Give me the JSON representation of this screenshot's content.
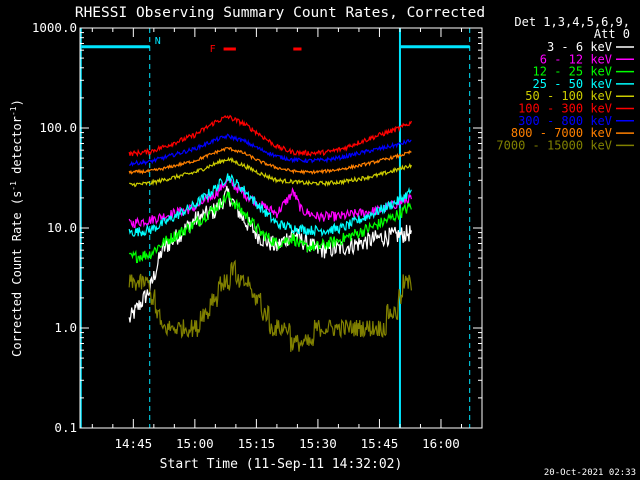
{
  "chart_data": {
    "type": "line",
    "title": "RHESSI Observing Summary Count Rates, Corrected",
    "xlabel": "Start Time (11-Sep-11 14:32:02)",
    "ylabel": "Corrected Count Rate (s^-1 detector^-1)",
    "ylabel_parts": [
      "Corrected Count Rate (s",
      "-1",
      " detector",
      "-1",
      ")"
    ],
    "yscale": "log",
    "ylim": [
      0.1,
      1000.0
    ],
    "xlim": [
      "14:32",
      "16:10"
    ],
    "x_ticks": [
      "14:45",
      "15:00",
      "15:15",
      "15:30",
      "15:45",
      "16:00"
    ],
    "y_ticks": [
      "0.1",
      "1.0",
      "10.0",
      "100.0",
      "1000.0"
    ],
    "legend_header": [
      "Det 1,3,4,5,6,9,",
      "Att 0"
    ],
    "legend_position": "top-right-outside",
    "timestamp": "20-Oct-2021 02:33",
    "annotations": {
      "night_marker": "N",
      "flare_marker": "F",
      "night_intervals": [
        [
          "14:32",
          "14:49"
        ],
        [
          "15:50",
          "16:07"
        ]
      ],
      "flare_bars": [
        [
          "15:07",
          "15:10"
        ],
        [
          "15:24",
          "15:26"
        ]
      ],
      "night_level": 650
    },
    "data_start": "14:44",
    "data_end": "15:53",
    "series": [
      {
        "name": "3 - 6 keV",
        "color": "#ffffff",
        "x": [
          "14:44",
          "14:49",
          "14:52",
          "15:00",
          "15:05",
          "15:08",
          "15:12",
          "15:16",
          "15:20",
          "15:24",
          "15:26",
          "15:30",
          "15:35",
          "15:40",
          "15:45",
          "15:50",
          "15:53"
        ],
        "values": [
          1.2,
          2.4,
          6.0,
          12.0,
          15.0,
          22.0,
          12.0,
          8.0,
          6.5,
          9.0,
          7.5,
          6.0,
          6.2,
          7.0,
          8.0,
          8.5,
          9.0
        ]
      },
      {
        "name": "6 - 12 keV",
        "color": "#ff00ff",
        "x": [
          "14:44",
          "14:49",
          "14:52",
          "15:00",
          "15:05",
          "15:08",
          "15:12",
          "15:16",
          "15:20",
          "15:24",
          "15:26",
          "15:30",
          "15:35",
          "15:40",
          "15:45",
          "15:50",
          "15:53"
        ],
        "values": [
          11,
          12,
          13,
          16,
          22,
          30,
          22,
          17,
          14,
          23,
          15,
          13,
          13,
          14,
          15,
          18,
          20
        ]
      },
      {
        "name": "12 - 25 keV",
        "color": "#00ff00",
        "x": [
          "14:44",
          "14:49",
          "14:52",
          "15:00",
          "15:05",
          "15:08",
          "15:12",
          "15:16",
          "15:20",
          "15:24",
          "15:26",
          "15:30",
          "15:35",
          "15:40",
          "15:45",
          "15:50",
          "15:53"
        ],
        "values": [
          5,
          5.5,
          7,
          11,
          16,
          21,
          14,
          9,
          7,
          8,
          6.5,
          6.5,
          7.5,
          9,
          11,
          14,
          17
        ]
      },
      {
        "name": "25 - 50 keV",
        "color": "#00ffff",
        "x": [
          "14:44",
          "14:49",
          "14:52",
          "15:00",
          "15:05",
          "15:08",
          "15:12",
          "15:16",
          "15:20",
          "15:24",
          "15:28",
          "15:32",
          "15:36",
          "15:40",
          "15:45",
          "15:50",
          "15:53"
        ],
        "values": [
          9,
          9.5,
          11,
          17,
          25,
          33,
          24,
          16,
          11,
          10,
          9.5,
          9.5,
          10,
          12,
          15,
          19,
          24
        ]
      },
      {
        "name": "50 - 100 keV",
        "color": "#cccc00",
        "x": [
          "14:44",
          "14:49",
          "14:52",
          "15:00",
          "15:05",
          "15:08",
          "15:12",
          "15:16",
          "15:20",
          "15:24",
          "15:28",
          "15:32",
          "15:36",
          "15:40",
          "15:45",
          "15:50",
          "15:53"
        ],
        "values": [
          27,
          28,
          30,
          36,
          44,
          49,
          42,
          35,
          30,
          29,
          28,
          28,
          29,
          31,
          34,
          39,
          43
        ]
      },
      {
        "name": "100 - 300 keV",
        "color": "#ff0000",
        "x": [
          "14:44",
          "14:49",
          "14:52",
          "15:00",
          "15:05",
          "15:08",
          "15:12",
          "15:16",
          "15:20",
          "15:24",
          "15:28",
          "15:32",
          "15:36",
          "15:40",
          "15:45",
          "15:50",
          "15:53"
        ],
        "values": [
          55,
          58,
          64,
          85,
          115,
          130,
          110,
          85,
          65,
          57,
          56,
          57,
          62,
          72,
          85,
          100,
          115
        ]
      },
      {
        "name": "300 - 800 keV",
        "color": "#0000ff",
        "x": [
          "14:44",
          "14:49",
          "14:52",
          "15:00",
          "15:05",
          "15:08",
          "15:12",
          "15:16",
          "15:20",
          "15:24",
          "15:28",
          "15:32",
          "15:36",
          "15:40",
          "15:45",
          "15:50",
          "15:53"
        ],
        "values": [
          44,
          46,
          50,
          62,
          76,
          83,
          74,
          61,
          52,
          48,
          47,
          48,
          51,
          56,
          62,
          69,
          76
        ]
      },
      {
        "name": "800 - 7000 keV",
        "color": "#ff8000",
        "x": [
          "14:44",
          "14:49",
          "14:52",
          "15:00",
          "15:05",
          "15:08",
          "15:12",
          "15:16",
          "15:20",
          "15:24",
          "15:28",
          "15:32",
          "15:36",
          "15:40",
          "15:45",
          "15:50",
          "15:53"
        ],
        "values": [
          36,
          37,
          39,
          47,
          57,
          63,
          56,
          46,
          40,
          37,
          36,
          37,
          39,
          42,
          47,
          53,
          58
        ]
      },
      {
        "name": "7000 - 15000 keV",
        "color": "#808000",
        "x": [
          "14:44",
          "14:49",
          "14:52",
          "14:55",
          "15:00",
          "15:03",
          "15:06",
          "15:09",
          "15:12",
          "15:15",
          "15:18",
          "15:21",
          "15:25",
          "15:30",
          "15:35",
          "15:40",
          "15:45",
          "15:49",
          "15:51",
          "15:53"
        ],
        "values": [
          2.5,
          2.5,
          1.0,
          0.9,
          1.0,
          1.5,
          2.5,
          3.5,
          3.0,
          2.0,
          1.2,
          0.9,
          0.8,
          0.85,
          0.85,
          0.9,
          1.0,
          1.5,
          2.5,
          3.0
        ]
      }
    ]
  }
}
